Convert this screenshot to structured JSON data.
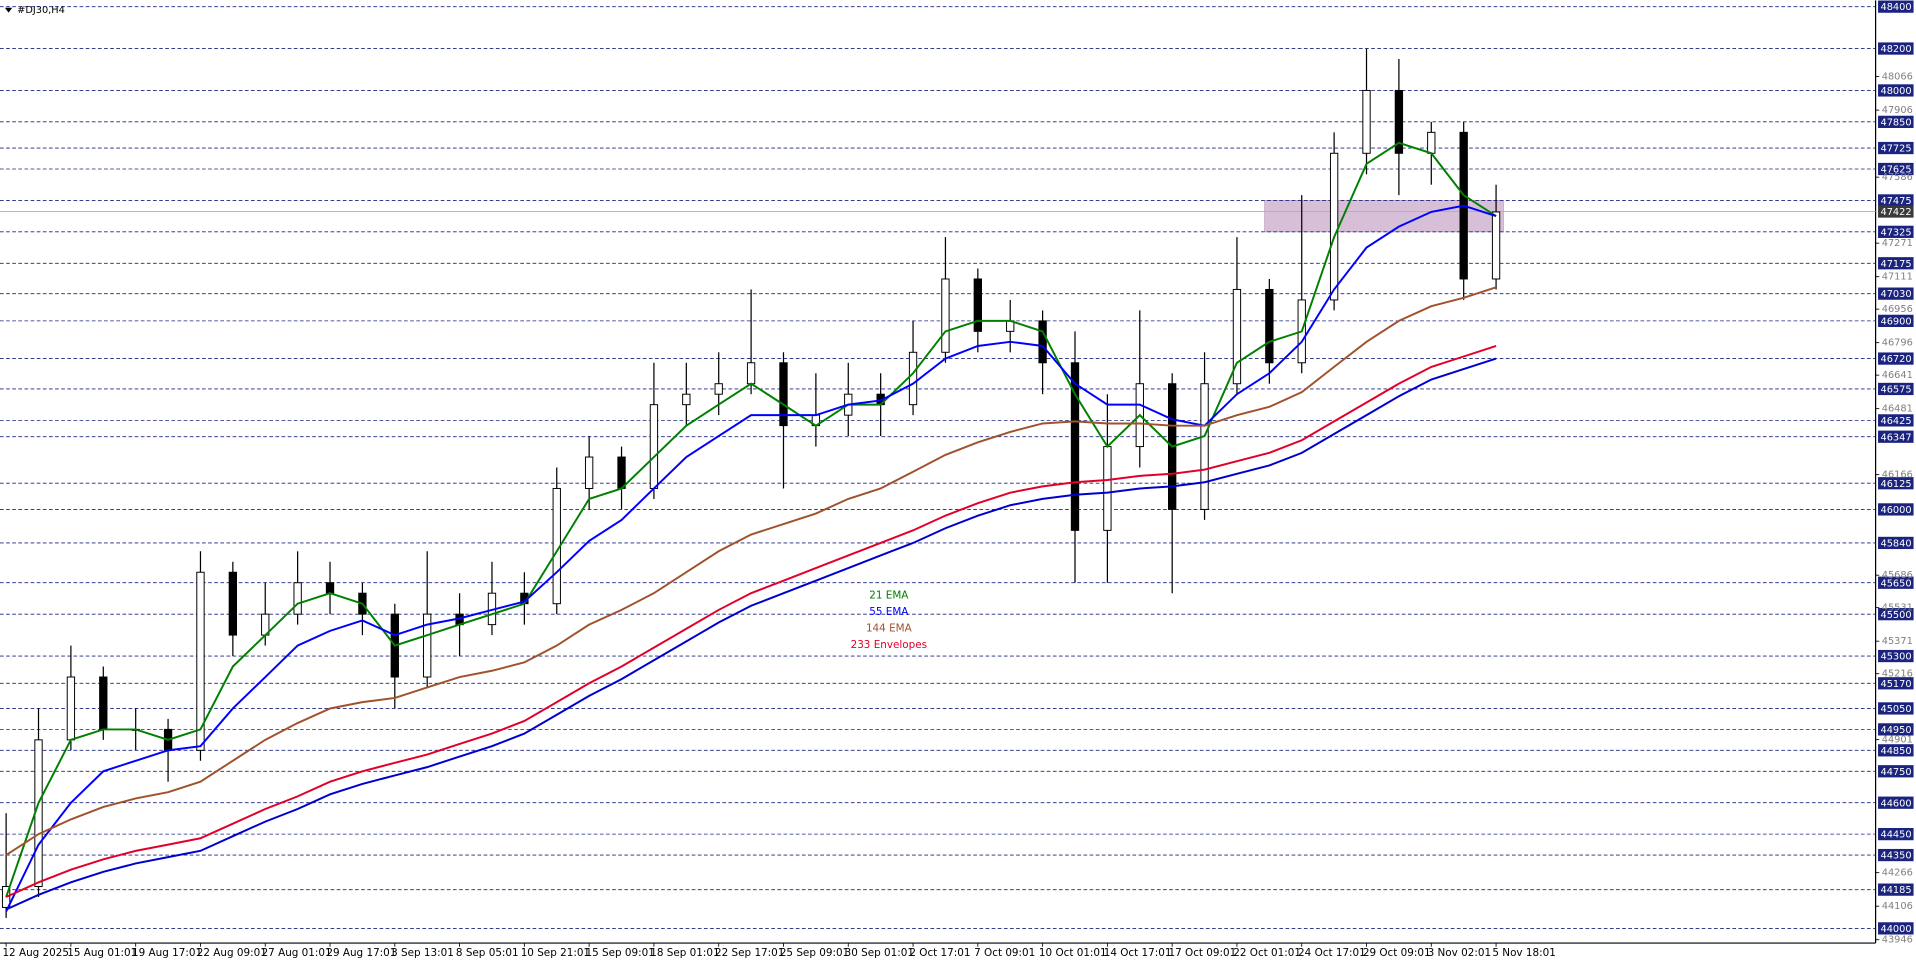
{
  "chart_data": {
    "type": "candlestick",
    "title": "#DJ30,H4",
    "categories": [
      "12 Aug 2025",
      null,
      "15 Aug 01:01",
      null,
      "19 Aug 17:01",
      null,
      "22 Aug 09:01",
      null,
      "27 Aug 01:01",
      null,
      "29 Aug 17:01",
      null,
      "3 Sep 13:01",
      null,
      "8 Sep 05:01",
      null,
      "10 Sep 21:01",
      null,
      "15 Sep 09:01",
      null,
      "18 Sep 01:01",
      null,
      "22 Sep 17:01",
      null,
      "25 Sep 09:01",
      null,
      "30 Sep 01:01",
      null,
      "2 Oct 17:01",
      null,
      "7 Oct 09:01",
      null,
      "10 Oct 01:01",
      null,
      "14 Oct 17:01",
      null,
      "17 Oct 09:01",
      null,
      "22 Oct 01:01",
      null,
      "24 Oct 17:01",
      null,
      "29 Oct 09:01",
      null,
      "3 Nov 02:01",
      null,
      "5 Nov 18:01"
    ],
    "open": [
      44100,
      44200,
      44900,
      45200,
      44950,
      44950,
      44850,
      45700,
      45400,
      45500,
      45650,
      45600,
      45500,
      45200,
      45500,
      45450,
      45600,
      45550,
      46100,
      46250,
      46100,
      46500,
      46550,
      46600,
      46700,
      46400,
      46450,
      46550,
      46500,
      46750,
      47100,
      46850,
      46900,
      46700,
      45900,
      46300,
      46600,
      46000,
      46600,
      47050,
      46700,
      47000,
      47700,
      48000,
      47700,
      47800,
      47100
    ],
    "high": [
      44550,
      45050,
      45350,
      45250,
      45050,
      45000,
      45800,
      45750,
      45650,
      45800,
      45750,
      45650,
      45550,
      45800,
      45600,
      45750,
      45700,
      46200,
      46350,
      46300,
      46700,
      46700,
      46750,
      47050,
      46750,
      46650,
      46700,
      46650,
      46900,
      47300,
      47150,
      47000,
      46950,
      46850,
      46550,
      46950,
      46650,
      46750,
      47300,
      47100,
      47500,
      47800,
      48200,
      48150,
      47850,
      47850,
      47550
    ],
    "low": [
      44050,
      44150,
      44850,
      44900,
      44850,
      44700,
      44800,
      45300,
      45350,
      45450,
      45500,
      45400,
      45050,
      45150,
      45300,
      45400,
      45450,
      45500,
      46000,
      46000,
      46050,
      46400,
      46450,
      46550,
      46100,
      46300,
      46350,
      46350,
      46450,
      46700,
      46750,
      46750,
      46550,
      45650,
      45650,
      46200,
      45600,
      45950,
      46550,
      46600,
      46650,
      46950,
      47600,
      47500,
      47550,
      47000,
      47050
    ],
    "close": [
      44200,
      44900,
      45200,
      44950,
      44950,
      44850,
      45700,
      45400,
      45500,
      45650,
      45600,
      45500,
      45200,
      45500,
      45450,
      45600,
      45550,
      46100,
      46250,
      46100,
      46500,
      46550,
      46600,
      46700,
      46400,
      46450,
      46550,
      46500,
      46750,
      47100,
      46850,
      46900,
      46700,
      45900,
      46300,
      46600,
      46000,
      46600,
      47050,
      46700,
      47000,
      47700,
      48000,
      47700,
      47800,
      47100,
      47420
    ],
    "candle_colors": {
      "up": "#ffffff",
      "down": "#000000",
      "outline": "#000000"
    },
    "series": [
      {
        "name": "21 EMA",
        "color": "#008000",
        "values": [
          44150,
          44600,
          44900,
          44950,
          44950,
          44900,
          44950,
          45250,
          45400,
          45550,
          45600,
          45550,
          45350,
          45400,
          45450,
          45500,
          45550,
          45800,
          46050,
          46100,
          46250,
          46400,
          46500,
          46600,
          46500,
          46400,
          46500,
          46500,
          46650,
          46850,
          46900,
          46900,
          46850,
          46550,
          46300,
          46450,
          46300,
          46350,
          46700,
          46800,
          46850,
          47300,
          47650,
          47750,
          47700,
          47500,
          47400
        ]
      },
      {
        "name": "55 EMA",
        "color": "#0000ff",
        "values": [
          44080,
          44400,
          44600,
          44750,
          44800,
          44850,
          44870,
          45050,
          45200,
          45350,
          45420,
          45470,
          45400,
          45450,
          45480,
          45520,
          45560,
          45700,
          45850,
          45950,
          46100,
          46250,
          46350,
          46450,
          46450,
          46450,
          46500,
          46520,
          46600,
          46720,
          46780,
          46800,
          46780,
          46600,
          46500,
          46500,
          46430,
          46400,
          46550,
          46650,
          46800,
          47050,
          47250,
          47350,
          47420,
          47450,
          47400
        ]
      },
      {
        "name": "144 EMA",
        "color": "#a0522d",
        "values": [
          44350,
          44450,
          44520,
          44580,
          44620,
          44650,
          44700,
          44800,
          44900,
          44980,
          45050,
          45080,
          45100,
          45150,
          45200,
          45230,
          45270,
          45350,
          45450,
          45520,
          45600,
          45700,
          45800,
          45880,
          45930,
          45980,
          46050,
          46100,
          46180,
          46260,
          46320,
          46370,
          46410,
          46420,
          46410,
          46410,
          46400,
          46400,
          46450,
          46490,
          46560,
          46680,
          46800,
          46900,
          46970,
          47010,
          47060
        ]
      },
      {
        "name": "233 Envelopes",
        "color": "#e0002a",
        "lower_color": "#0000cd",
        "values": [
          44150,
          44220,
          44280,
          44330,
          44370,
          44400,
          44430,
          44500,
          44570,
          44630,
          44700,
          44750,
          44790,
          44830,
          44880,
          44930,
          44990,
          45080,
          45170,
          45250,
          45340,
          45430,
          45520,
          45600,
          45660,
          45720,
          45780,
          45840,
          45900,
          45970,
          46030,
          46080,
          46110,
          46130,
          46140,
          46160,
          46170,
          46190,
          46230,
          46270,
          46330,
          46420,
          46510,
          46600,
          46680,
          46730,
          46780
        ],
        "lower": [
          44090,
          44160,
          44220,
          44270,
          44310,
          44340,
          44370,
          44440,
          44510,
          44570,
          44640,
          44690,
          44730,
          44770,
          44820,
          44870,
          44930,
          45020,
          45110,
          45190,
          45280,
          45370,
          45460,
          45540,
          45600,
          45660,
          45720,
          45780,
          45840,
          45910,
          45970,
          46020,
          46050,
          46070,
          46080,
          46100,
          46110,
          46130,
          46170,
          46210,
          46270,
          46360,
          46450,
          46540,
          46620,
          46670,
          46720
        ]
      }
    ],
    "ylim": [
      43930,
      48430
    ],
    "yticks": [
      48066,
      47906,
      47586,
      47271,
      47111,
      46956,
      46796,
      46641,
      46481,
      46166,
      45686,
      45531,
      45371,
      45216,
      44901,
      44266,
      44106,
      43946
    ],
    "levels": [
      48400,
      48200,
      48000,
      47850,
      47725,
      47625,
      47475,
      47325,
      47175,
      47030,
      46900,
      46720,
      46575,
      46425,
      46347,
      46125,
      46000,
      45840,
      45650,
      45500,
      45300,
      45170,
      45050,
      44950,
      44850,
      44750,
      44600,
      44450,
      44350,
      44185,
      44000
    ],
    "level_color": "#1a237e",
    "current_price": 47422,
    "zone": {
      "low": 47325,
      "high": 47475,
      "color": "#d8bfd8"
    }
  }
}
